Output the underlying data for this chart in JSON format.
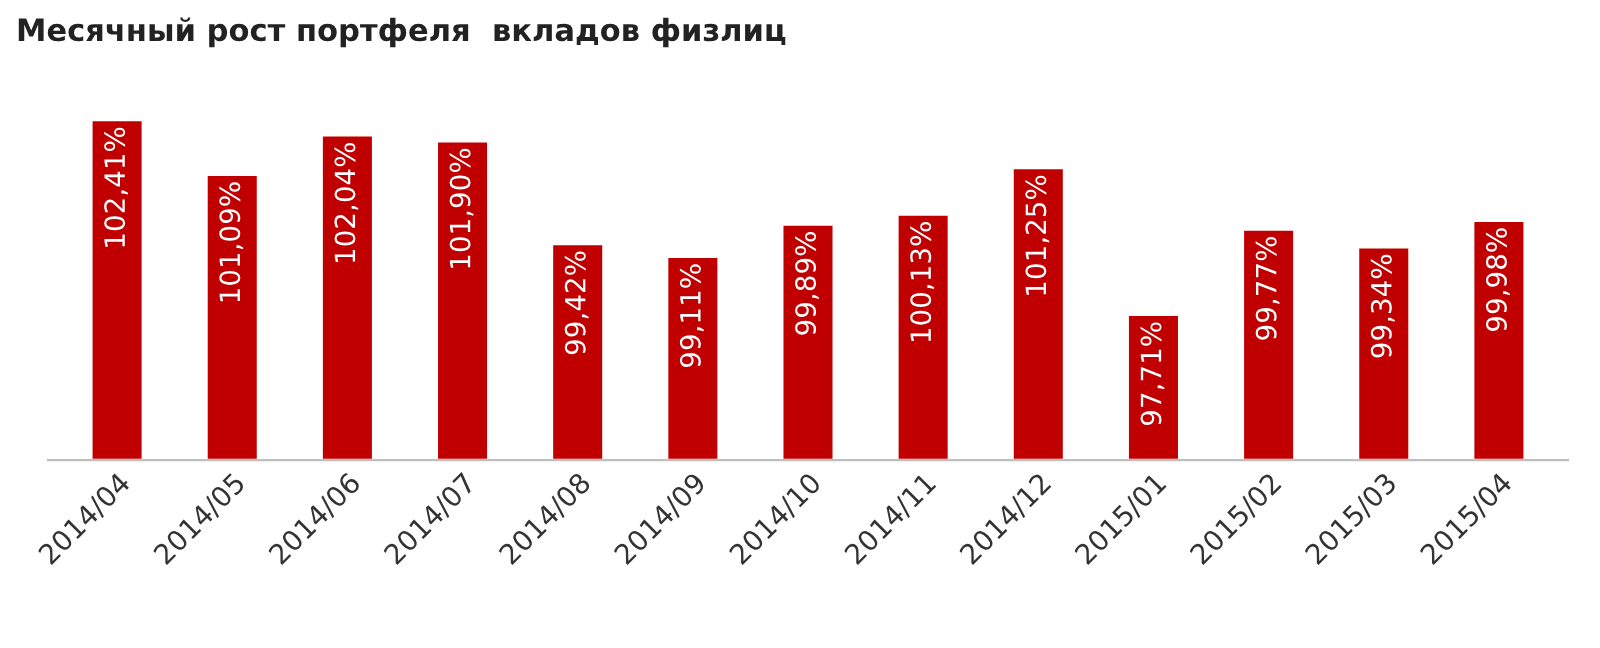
{
  "chart_data": {
    "type": "bar",
    "title": "Месячный рост портфеля  вкладов физлиц",
    "categories": [
      "2014/04",
      "2014/05",
      "2014/06",
      "2014/07",
      "2014/08",
      "2014/09",
      "2014/10",
      "2014/11",
      "2014/12",
      "2015/01",
      "2015/02",
      "2015/03",
      "2015/04"
    ],
    "values": [
      102.41,
      101.09,
      102.04,
      101.9,
      99.42,
      99.11,
      99.89,
      100.13,
      101.25,
      97.71,
      99.77,
      99.34,
      99.98
    ],
    "value_labels": [
      "102,41%",
      "101,09%",
      "102,04%",
      "101,90%",
      "99,42%",
      "99,11%",
      "99,89%",
      "100,13%",
      "101,25%",
      "97,71%",
      "99,77%",
      "99,34%",
      "99,98%"
    ],
    "color": "#c00000",
    "ylim": [
      94.2,
      102.41
    ],
    "tick_labels": "x",
    "grid": false,
    "legend": false
  }
}
